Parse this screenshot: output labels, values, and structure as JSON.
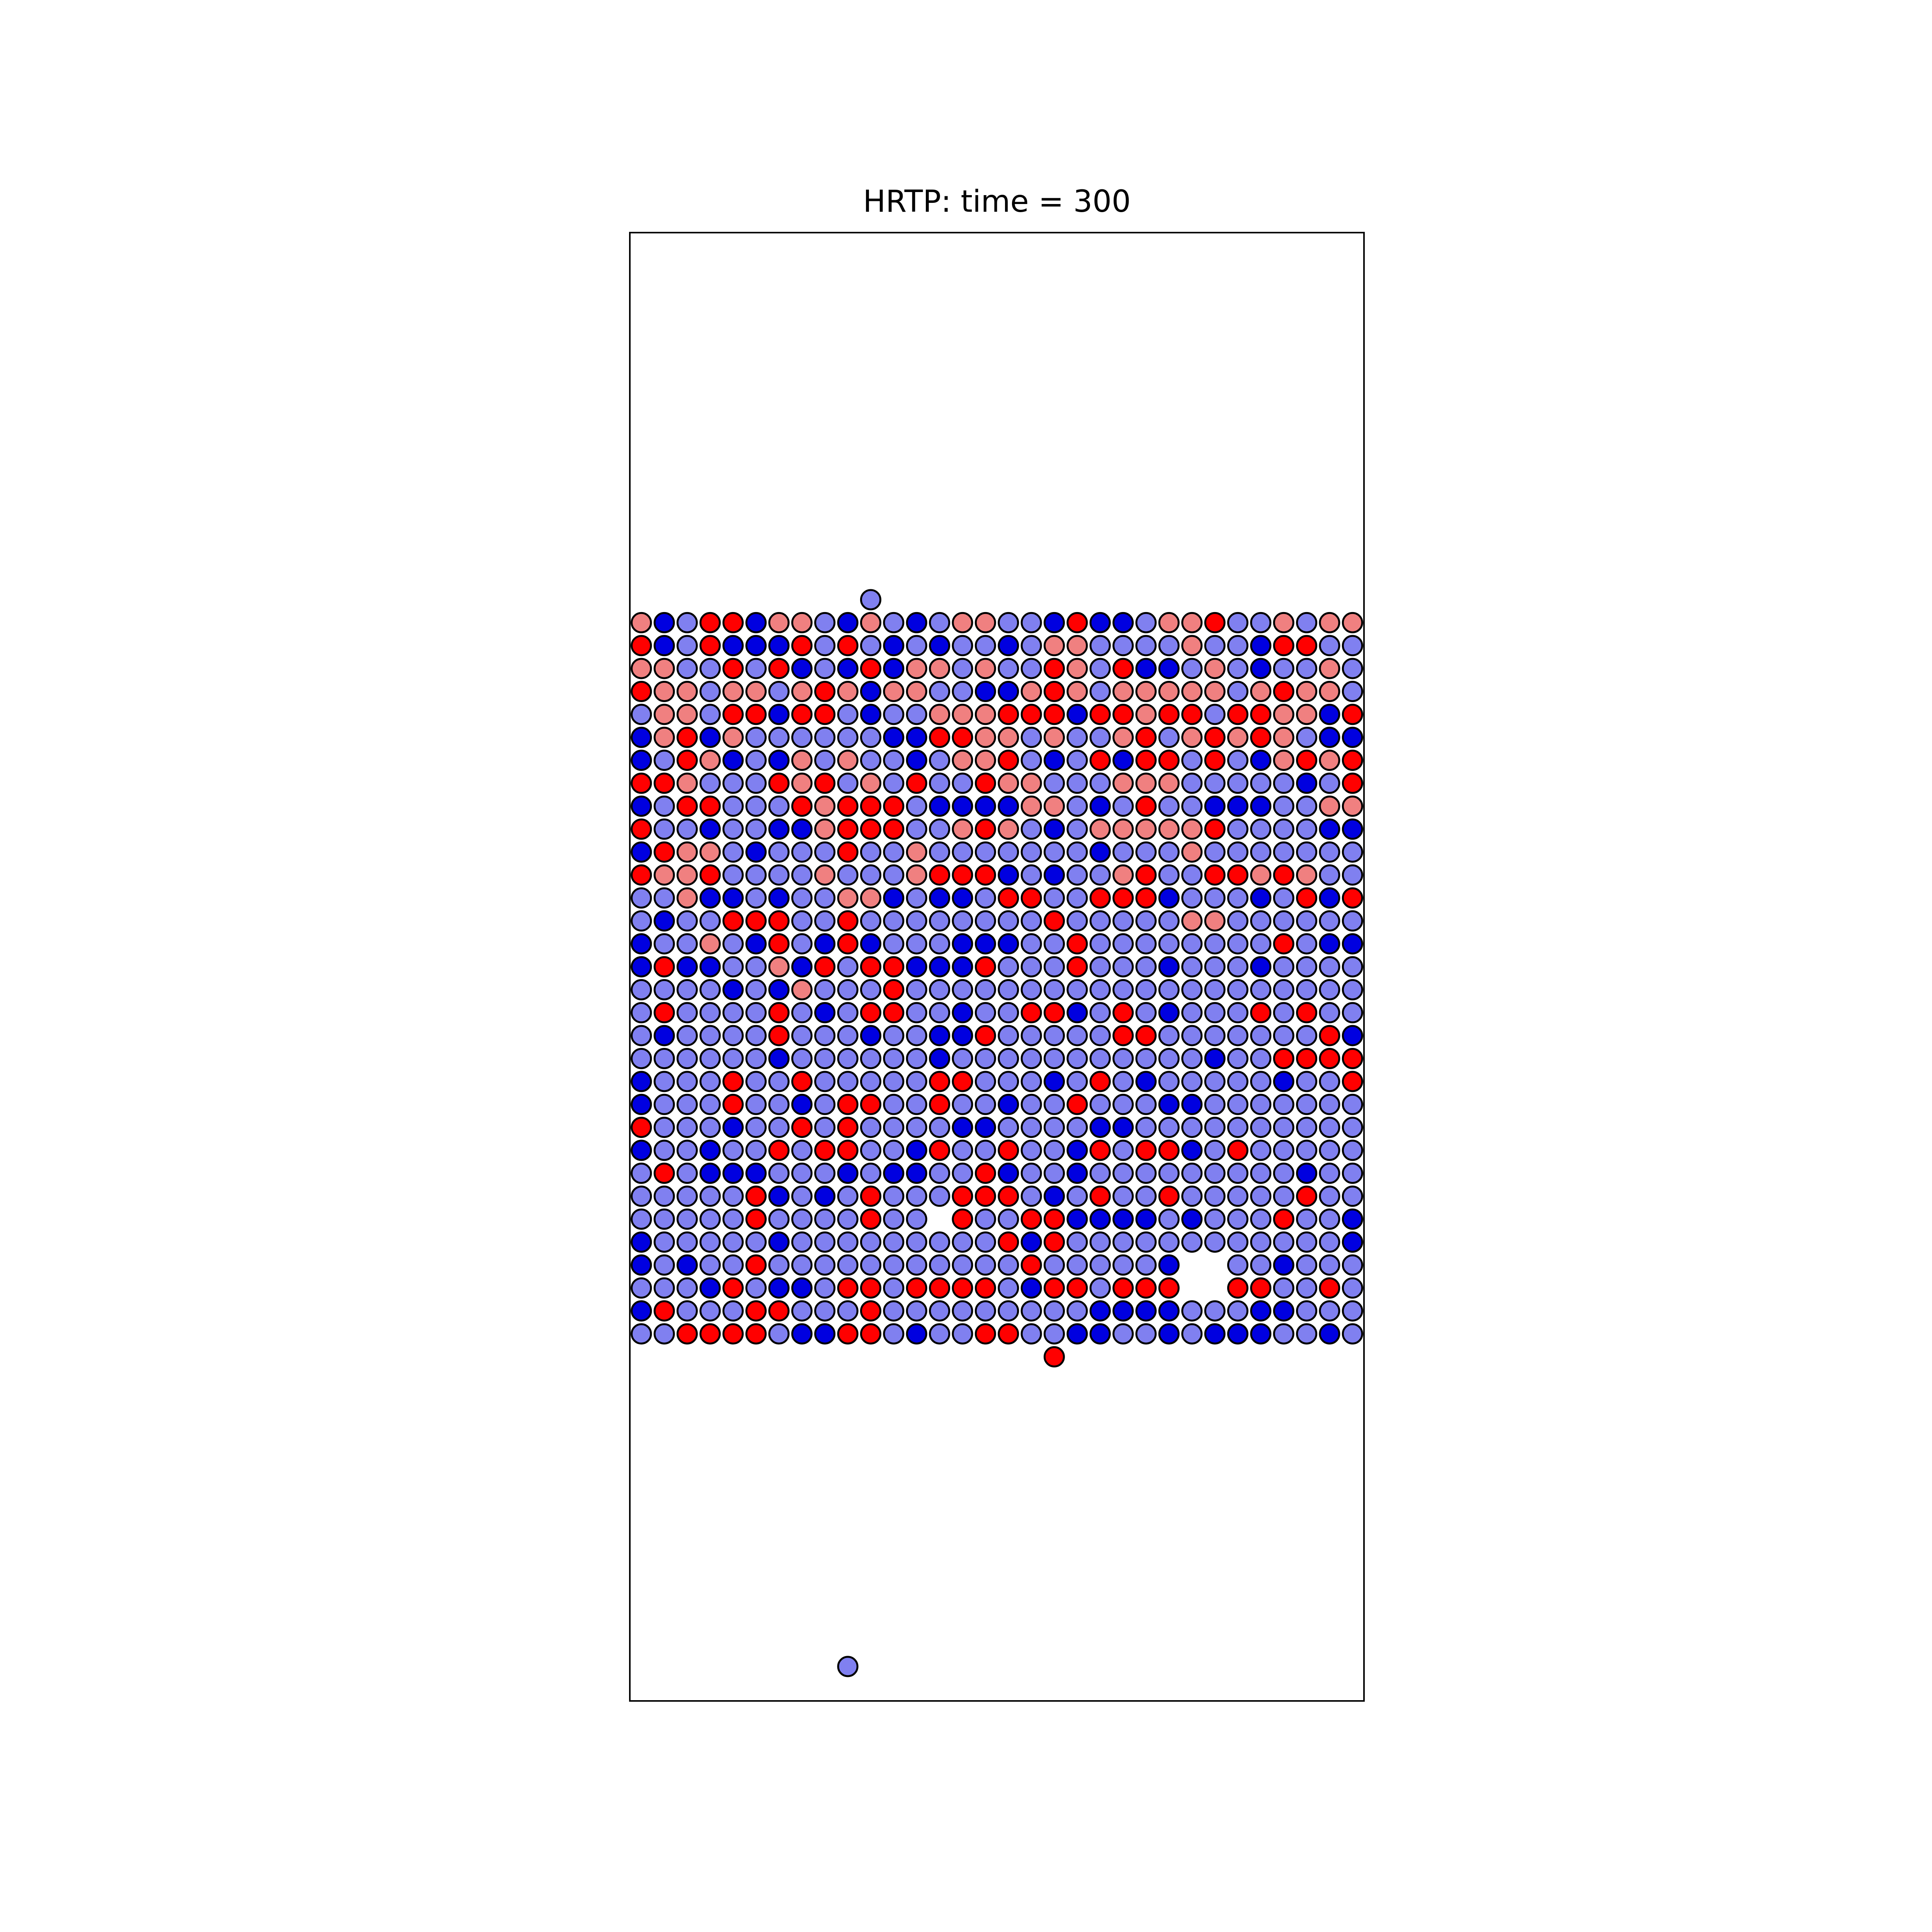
{
  "chart_data": {
    "type": "scatter",
    "title": "HRTP: time = 300",
    "xlabel": "",
    "ylabel": "",
    "xlim": [
      0,
      32
    ],
    "ylim": [
      0,
      64
    ],
    "grid": false,
    "ticks": false,
    "marker_edge_color": "#000000",
    "colors": {
      "A": "#f08080",
      "B": "#0000e0",
      "C": "#8080f0",
      "D": "#ff0000",
      "_": "empty"
    },
    "lattice": {
      "x0": 0.5,
      "dx": 1,
      "y_top": 47.0,
      "dy": 1,
      "rows": [
        "ABCDDBAACBACBCAACCBDBBCAADCCACAA",
        "DBCDBBBDCDCBCBCCBCAACCCCACCBDDCC",
        "AACCDCDBCBDBAACACCDACDBBCACBCCAC",
        "DAACAACADABAACCBBADACAAAAACADAAC",
        "CAACDDBDDCBCCAAADDDBDDADDCDDAABD",
        "BADBACCCCCCBBDDAACACCADCADADACBB",
        "BCDABCBACACCBCAADCBCDBDDCDCBADAD",
        "DDACCCDADCACDCCDAACCCAAACCCCCBCD",
        "BCDDCCCDADDDCBBBBAACBCDCCBBBCCAA",
        "DCCBCCBBADDDCCADACBCAAAAADCCCCBB",
        "BDAACBCCCDCCACCCCCCCBCCCACCCCCCC",
        "DAADCCCCACCCADDDBCBCCADCCDDADACC",
        "CCABBCBCCAABCBBCDDCCDDDBCCCBCDBD",
        "CBCCDDDCCDCCCCCCCCDCCCCCAACCCCCC",
        "BCCACBDCBDBCCCBBBCCDCCCCCCCCDCBB",
        "BDBBCCABDCDDBBBDCCCDCCCBCCCBCCCC",
        "CCCCBCBACCCDCCCCCCCCCCCCCCCCCCCC",
        "CDCCCCDCBCDDCCBCCDDBCDCBCCCDCDCC",
        "CBCCCCDCCCBCCBBDCCCCCDDCCCCCCCDB",
        "CCCCCCBCCCCCCBCCCCCCCCCCCBCCDDDD",
        "BCCCDCCDCCCCCDDCCCBCDCBCCCCCBCCD",
        "BCCCDCCBCDDCCDCCBCCDCCCBBCCCCCCC",
        "DCCCBCCDCDCCCCBBCCCCBBCCCCCCCCCC",
        "BCCBCCDCDDCCBDCCDCCBDCDDBCDCCCCC",
        "CDCBBBCCCBCBBCCDBCCBCCCCCCCCCBCC",
        "CCCCCDBCBCDCCCDDDCBCDCCDCCCCCDCC",
        "CCCCCDCCCCDCC_DCCDDBBBBCBCCCDCCB",
        "BCCCCCBCCCCCCCCCDBDCCCCCCCCCCCCB",
        "BCBCCDCCCCCCCCCCCDCCCCCB__CCBCCC",
        "CCCBDCBBCDDCDDDDCBDDCDDD__DDCCDC",
        "BDCCCDDCCCDCCCCCCCCCBBBBCCCBBCCC",
        "CCDDDDCBBDDCBCCDDCCBBCCBCBBBCCBC"
      ]
    },
    "extra_points": [
      {
        "x": 10.5,
        "y": 48.0,
        "color": "C"
      },
      {
        "x": 18.5,
        "y": 15.0,
        "color": "D"
      },
      {
        "x": 9.5,
        "y": 1.5,
        "color": "C"
      }
    ]
  }
}
